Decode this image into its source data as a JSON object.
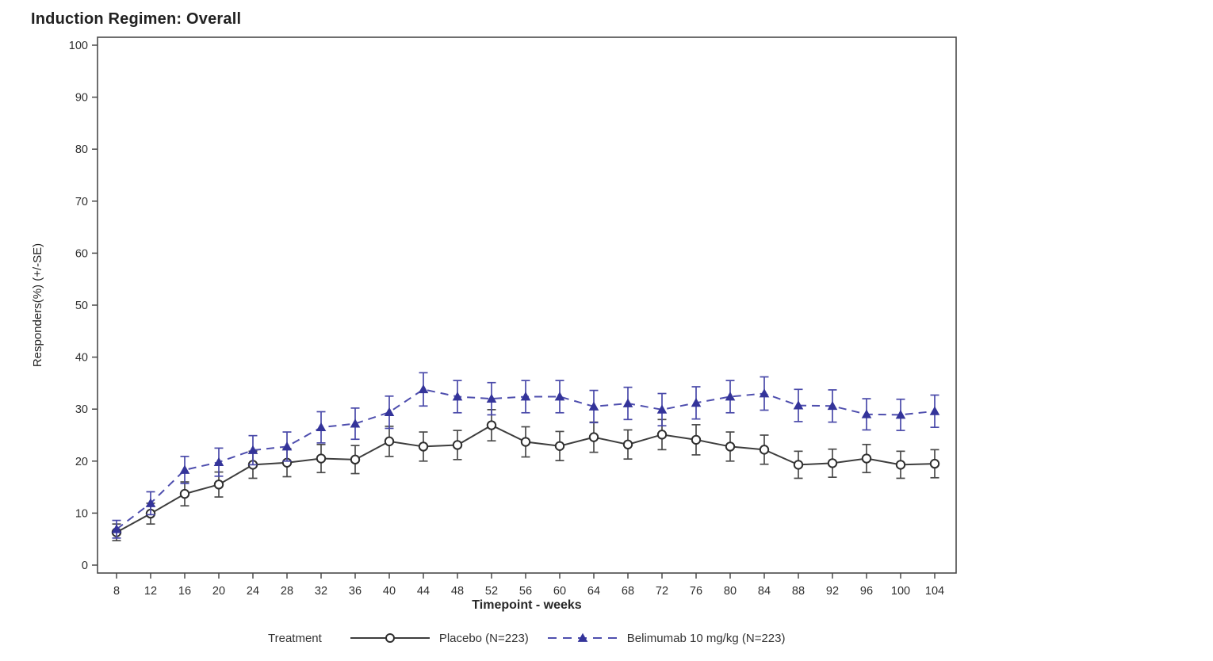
{
  "chart_data": {
    "type": "line",
    "title": "Induction Regimen: Overall",
    "xlabel": "Timepoint - weeks",
    "ylabel": "Responders(%) (+/-SE)",
    "error_bars": "+/-SE",
    "grid": false,
    "ylim": [
      0,
      100
    ],
    "yticks": [
      0,
      10,
      20,
      30,
      40,
      50,
      60,
      70,
      80,
      90,
      100
    ],
    "x": [
      8,
      12,
      16,
      20,
      24,
      28,
      32,
      36,
      40,
      44,
      48,
      52,
      56,
      60,
      64,
      68,
      72,
      76,
      80,
      84,
      88,
      92,
      96,
      100,
      104
    ],
    "legend": {
      "title": "Treatment",
      "position": "bottom"
    },
    "series": [
      {
        "name": "Placebo (N=223)",
        "marker": "open-circle",
        "line_style": "solid",
        "color": "#3d3d3d",
        "line_color": "#3d3d3d",
        "error_color": "#4a4a4a",
        "values": [
          6.3,
          9.9,
          13.7,
          15.5,
          19.3,
          19.7,
          20.5,
          20.3,
          23.8,
          22.8,
          23.1,
          26.9,
          23.7,
          22.9,
          24.6,
          23.2,
          25.1,
          24.1,
          22.8,
          22.2,
          19.3,
          19.6,
          20.5,
          19.3,
          19.5
        ],
        "se": [
          1.6,
          2.0,
          2.3,
          2.4,
          2.6,
          2.7,
          2.7,
          2.7,
          2.9,
          2.8,
          2.8,
          3.0,
          2.9,
          2.8,
          2.9,
          2.8,
          2.9,
          2.9,
          2.8,
          2.8,
          2.6,
          2.7,
          2.7,
          2.6,
          2.7
        ]
      },
      {
        "name": "Belimumab 10 mg/kg (N=223)",
        "marker": "filled-triangle",
        "line_style": "dashed",
        "color": "#34349a",
        "line_color": "#4e4eae",
        "error_color": "#4949a9",
        "values": [
          6.9,
          11.9,
          18.3,
          19.8,
          22.1,
          22.8,
          26.5,
          27.2,
          29.4,
          33.8,
          32.4,
          32.0,
          32.4,
          32.4,
          30.5,
          31.1,
          29.9,
          31.2,
          32.4,
          33.0,
          30.7,
          30.6,
          29.0,
          28.9,
          29.6
        ],
        "se": [
          1.7,
          2.2,
          2.6,
          2.7,
          2.8,
          2.8,
          3.0,
          3.0,
          3.1,
          3.2,
          3.1,
          3.1,
          3.1,
          3.1,
          3.1,
          3.1,
          3.1,
          3.1,
          3.1,
          3.2,
          3.1,
          3.1,
          3.0,
          3.0,
          3.1
        ]
      }
    ]
  }
}
